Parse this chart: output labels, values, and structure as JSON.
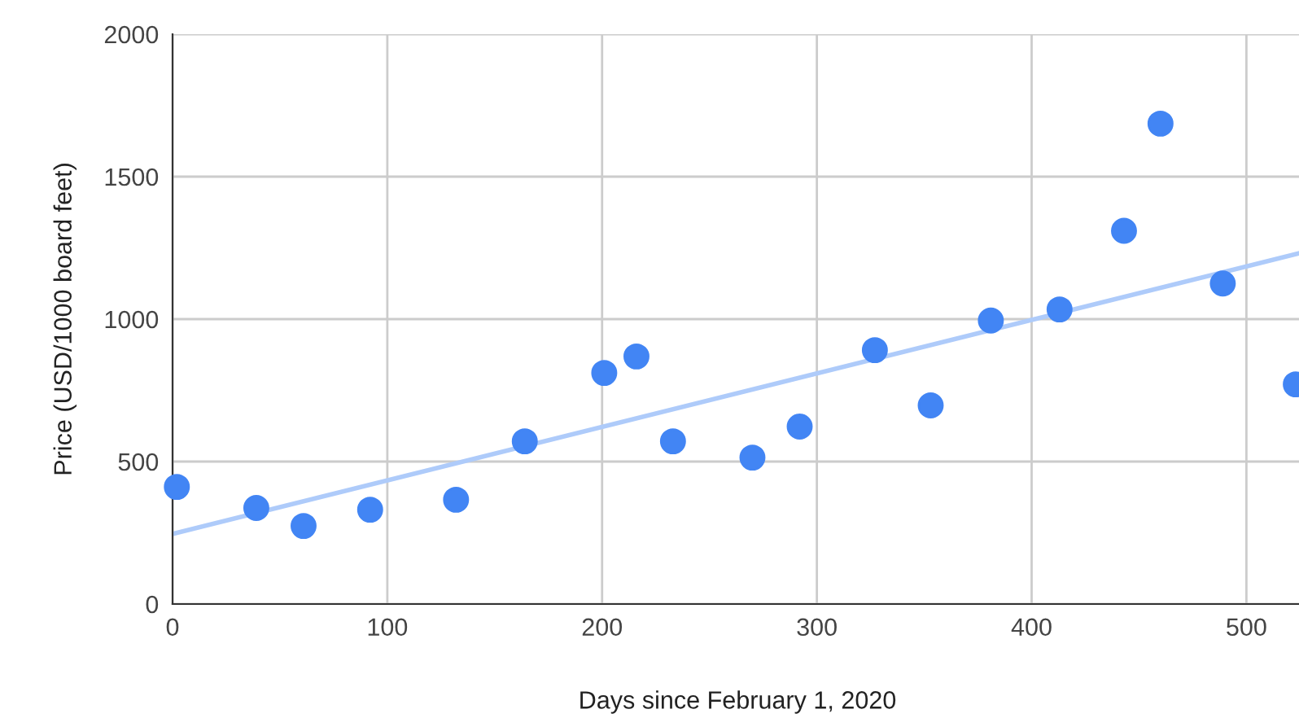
{
  "chart_data": {
    "type": "scatter",
    "xlabel": "Days since February 1, 2020",
    "ylabel": "Price (USD/1000 board feet)",
    "xlim": [
      0,
      526
    ],
    "ylim": [
      0,
      2000
    ],
    "xticks": [
      0,
      100,
      200,
      300,
      400,
      500
    ],
    "yticks": [
      0,
      500,
      1000,
      1500,
      2000
    ],
    "grid": true,
    "series": [
      {
        "marker": "circle",
        "color": "#4285f4",
        "x": [
          2,
          39,
          61,
          92,
          132,
          164,
          201,
          216,
          233,
          270,
          292,
          327,
          353,
          381,
          413,
          443,
          460,
          489,
          523
        ],
        "values": [
          411,
          337,
          274,
          331,
          366,
          571,
          811,
          869,
          571,
          514,
          623,
          891,
          697,
          995,
          1034,
          1310,
          1686,
          1125,
          771
        ]
      },
      {
        "type": "line",
        "color": "#aecbfa",
        "x": [
          0,
          526
        ],
        "values": [
          246,
          1234
        ]
      }
    ]
  }
}
